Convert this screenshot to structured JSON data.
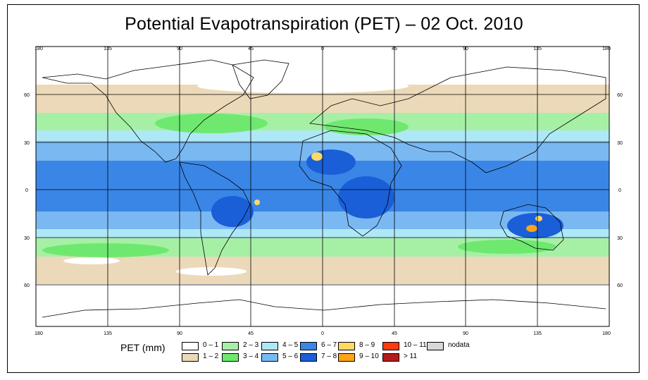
{
  "title": "Potential Evapotranspiration (PET) – 02 Oct. 2010",
  "lon_labels": [
    "180",
    "135",
    "90",
    "45",
    "0",
    "45",
    "90",
    "135",
    "180"
  ],
  "lat_labels": [
    "60",
    "30",
    "0",
    "30",
    "60"
  ],
  "legend": {
    "title": "PET (mm)",
    "items": [
      {
        "label": "0 – 1",
        "color": "#ffffff"
      },
      {
        "label": "1 – 2",
        "color": "#ecd9b9"
      },
      {
        "label": "2 – 3",
        "color": "#a6f0a6"
      },
      {
        "label": "3 – 4",
        "color": "#6fe86f"
      },
      {
        "label": "4 – 5",
        "color": "#aee8f6"
      },
      {
        "label": "5 – 6",
        "color": "#7ab8f2"
      },
      {
        "label": "6 – 7",
        "color": "#3a86e6"
      },
      {
        "label": "7 – 8",
        "color": "#1a5fd8"
      },
      {
        "label": "8 – 9",
        "color": "#ffd866"
      },
      {
        "label": "9 – 10",
        "color": "#ffa31a"
      },
      {
        "label": "10 – 11",
        "color": "#ff3a10"
      },
      {
        "label": "> 11",
        "color": "#b31c1c"
      },
      {
        "label": "nodata",
        "color": "#d8d8d8"
      }
    ]
  }
}
